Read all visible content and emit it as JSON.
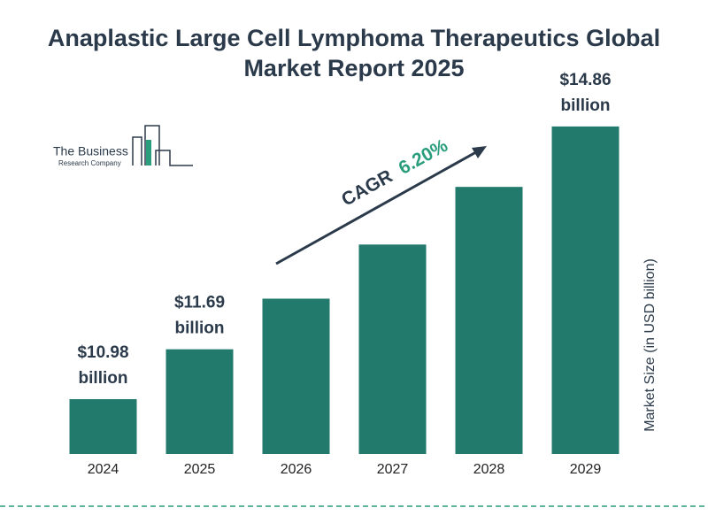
{
  "chart_data": {
    "type": "bar",
    "title": "Anaplastic Large Cell Lymphoma Therapeutics Global Market Report 2025",
    "logo_line1": "The Business",
    "logo_line2": "Research Company",
    "categories": [
      "2024",
      "2025",
      "2026",
      "2027",
      "2028",
      "2029"
    ],
    "values": [
      10.98,
      11.69,
      12.41,
      13.18,
      14.0,
      14.86
    ],
    "value_labels": [
      "$10.98 billion",
      "$11.69 billion",
      null,
      null,
      null,
      "$14.86 billion"
    ],
    "color": "#217a6b",
    "ylim": [
      10.2,
      15.4
    ],
    "y_axis_label": "Market Size (in USD billion)",
    "cagr_label": "CAGR",
    "cagr_value": "6.20%"
  }
}
